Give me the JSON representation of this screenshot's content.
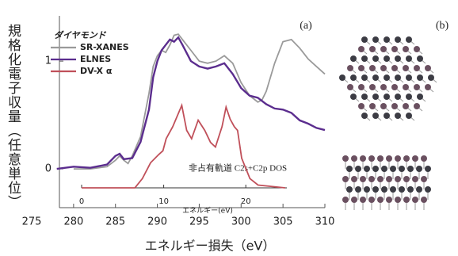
{
  "chart_data": [
    {
      "type": "line",
      "x_label": "エネルギー損失（eV）",
      "y_label": "規格化電子収量（任意単位）",
      "legend_title": "ダイヤモンド",
      "panel_label": "(a)",
      "xlim": [
        275,
        310
      ],
      "xticks": [
        275,
        280,
        285,
        290,
        295,
        300,
        305,
        310
      ],
      "ylim": [
        -0.36,
        1.42
      ],
      "yticks": [
        0,
        1
      ],
      "series": [
        {
          "name": "SR-XANES",
          "color": "#9a9a9a",
          "x": [
            280,
            282,
            284,
            285,
            285.5,
            286,
            286.5,
            287,
            288,
            289,
            289.5,
            290,
            290.5,
            291,
            291.5,
            292,
            292.5,
            293,
            294,
            295,
            296,
            297,
            298,
            299,
            300,
            301,
            302,
            302.5,
            303,
            304,
            305,
            306,
            307,
            308,
            309,
            310
          ],
          "values": [
            0,
            0,
            0.02,
            0.08,
            0.12,
            0.08,
            0.05,
            0.12,
            0.3,
            0.7,
            0.95,
            1.05,
            1.1,
            1.08,
            1.15,
            1.24,
            1.25,
            1.2,
            1.1,
            1.0,
            0.98,
            1.0,
            1.05,
            0.98,
            0.8,
            0.68,
            0.62,
            0.64,
            0.72,
            0.98,
            1.18,
            1.2,
            1.12,
            1.02,
            0.95,
            0.88
          ]
        },
        {
          "name": "ELNES",
          "color": "#5b2d8e",
          "x": [
            278,
            280,
            282,
            284,
            285,
            285.5,
            286,
            287,
            288,
            289,
            289.5,
            290,
            290.5,
            291,
            291.5,
            292,
            292.5,
            293,
            294,
            295,
            296,
            297,
            298,
            299,
            300,
            301,
            302,
            303,
            304,
            305,
            306,
            307,
            308,
            309,
            310
          ],
          "values": [
            0,
            0.02,
            0.01,
            0.04,
            0.12,
            0.14,
            0.09,
            0.1,
            0.25,
            0.55,
            0.85,
            1.0,
            1.1,
            1.15,
            1.2,
            1.18,
            1.22,
            1.15,
            1.0,
            0.95,
            0.93,
            0.95,
            0.98,
            0.88,
            0.75,
            0.68,
            0.66,
            0.6,
            0.56,
            0.55,
            0.52,
            0.45,
            0.42,
            0.38,
            0.36
          ]
        }
      ]
    },
    {
      "type": "line",
      "x_label": "エネルギー(eV)",
      "annotation": "非占有軌道 C2s+C2p DOS",
      "xlim": [
        0,
        25
      ],
      "xticks": [
        0,
        10,
        20
      ],
      "ylim": [
        0,
        1
      ],
      "series": [
        {
          "name": "DV-X α",
          "color": "#c0505a",
          "x": [
            0,
            6.5,
            7.4,
            8.4,
            9.4,
            9.9,
            10.3,
            11.1,
            12.2,
            12.8,
            13.4,
            14.2,
            15.0,
            15.7,
            16.3,
            17.1,
            17.6,
            18.1,
            18.6,
            19.0,
            19.5,
            20.5,
            21.5,
            24.8
          ],
          "values": [
            0,
            0,
            0.1,
            0.27,
            0.36,
            0.4,
            0.53,
            0.66,
            0.89,
            0.62,
            0.53,
            0.73,
            0.62,
            0.49,
            0.44,
            0.66,
            0.87,
            0.74,
            0.66,
            0.62,
            0.32,
            0.1,
            0.03,
            0
          ]
        }
      ]
    },
    {
      "type": "image",
      "panel_label": "(b)"
    }
  ]
}
